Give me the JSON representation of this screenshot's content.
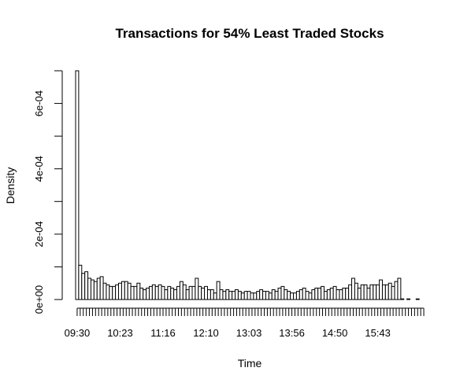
{
  "chart_data": {
    "type": "bar",
    "title": "Transactions for 54% Least Traded Stocks",
    "xlabel": "Time",
    "ylabel": "Density",
    "ylim": [
      0,
      0.0007
    ],
    "y_ticks": [
      {
        "value": 0,
        "label": "0e+00"
      },
      {
        "value": 0.0002,
        "label": "2e-04"
      },
      {
        "value": 0.0004,
        "label": "4e-04"
      },
      {
        "value": 0.0006,
        "label": "6e-04"
      }
    ],
    "x_tick_labels": [
      {
        "index": 0,
        "label": "09:30"
      },
      {
        "index": 14,
        "label": "10:23"
      },
      {
        "index": 28,
        "label": "11:16"
      },
      {
        "index": 42,
        "label": "12:10"
      },
      {
        "index": 56,
        "label": "13:03"
      },
      {
        "index": 70,
        "label": "13:56"
      },
      {
        "index": 84,
        "label": "14:50"
      },
      {
        "index": 98,
        "label": "15:43"
      }
    ],
    "values": [
      0.0007,
      0.000105,
      8e-05,
      8.5e-05,
      6.5e-05,
      6e-05,
      5.5e-05,
      6.5e-05,
      7e-05,
      5e-05,
      4.5e-05,
      4e-05,
      4e-05,
      4.5e-05,
      5e-05,
      5.5e-05,
      5.5e-05,
      5e-05,
      4e-05,
      4e-05,
      5e-05,
      3.5e-05,
      3e-05,
      3.5e-05,
      4e-05,
      4.5e-05,
      4e-05,
      4.5e-05,
      4e-05,
      3e-05,
      4e-05,
      3.5e-05,
      3e-05,
      4e-05,
      5.5e-05,
      4.5e-05,
      3e-05,
      4e-05,
      4e-05,
      6.5e-05,
      4e-05,
      3.5e-05,
      4e-05,
      3e-05,
      3e-05,
      2e-05,
      5.5e-05,
      3e-05,
      2.5e-05,
      3e-05,
      2.5e-05,
      2.5e-05,
      3e-05,
      2.5e-05,
      2e-05,
      2.5e-05,
      2.5e-05,
      2e-05,
      2e-05,
      2.5e-05,
      3e-05,
      2.5e-05,
      2.5e-05,
      2e-05,
      3e-05,
      2.5e-05,
      3.5e-05,
      4e-05,
      3e-05,
      2.5e-05,
      2e-05,
      2e-05,
      2.5e-05,
      3e-05,
      3.5e-05,
      2.5e-05,
      2e-05,
      3e-05,
      3.5e-05,
      3.5e-05,
      4e-05,
      2.5e-05,
      3e-05,
      3.5e-05,
      4e-05,
      3e-05,
      3e-05,
      3.5e-05,
      3.5e-05,
      4.5e-05,
      6.5e-05,
      5e-05,
      3.5e-05,
      4.5e-05,
      4.5e-05,
      3.5e-05,
      4.5e-05,
      4.5e-05,
      4.5e-05,
      6e-05,
      4.5e-05,
      4.5e-05,
      5e-05,
      4e-05,
      5.5e-05,
      6.5e-05,
      2e-06,
      0,
      2e-06,
      0,
      0,
      2e-06,
      0,
      0
    ]
  }
}
